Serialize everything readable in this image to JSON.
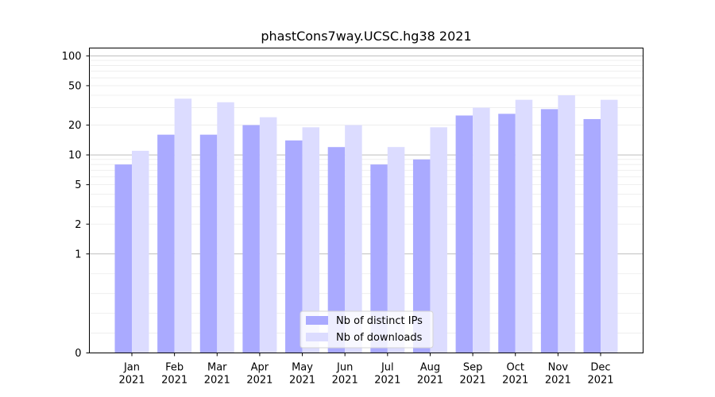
{
  "chart_data": {
    "type": "bar",
    "title": "phastCons7way.UCSC.hg38 2021",
    "xlabel": "",
    "ylabel": "",
    "yscale": "symlog",
    "ylim": [
      0,
      120
    ],
    "yticks": [
      0,
      1,
      2,
      5,
      10,
      20,
      50,
      100
    ],
    "grid": true,
    "legend_position": "bottom-center",
    "categories": [
      "Jan\n2021",
      "Feb\n2021",
      "Mar\n2021",
      "Apr\n2021",
      "May\n2021",
      "Jun\n2021",
      "Jul\n2021",
      "Aug\n2021",
      "Sep\n2021",
      "Oct\n2021",
      "Nov\n2021",
      "Dec\n2021"
    ],
    "series": [
      {
        "name": "Nb of distinct IPs",
        "color": "#aaaaff",
        "values": [
          8,
          16,
          16,
          20,
          14,
          12,
          8,
          9,
          25,
          26,
          29,
          23
        ]
      },
      {
        "name": "Nb of downloads",
        "color": "#dcdcff",
        "values": [
          11,
          37,
          34,
          24,
          19,
          20,
          12,
          19,
          30,
          36,
          40,
          36
        ]
      }
    ]
  }
}
